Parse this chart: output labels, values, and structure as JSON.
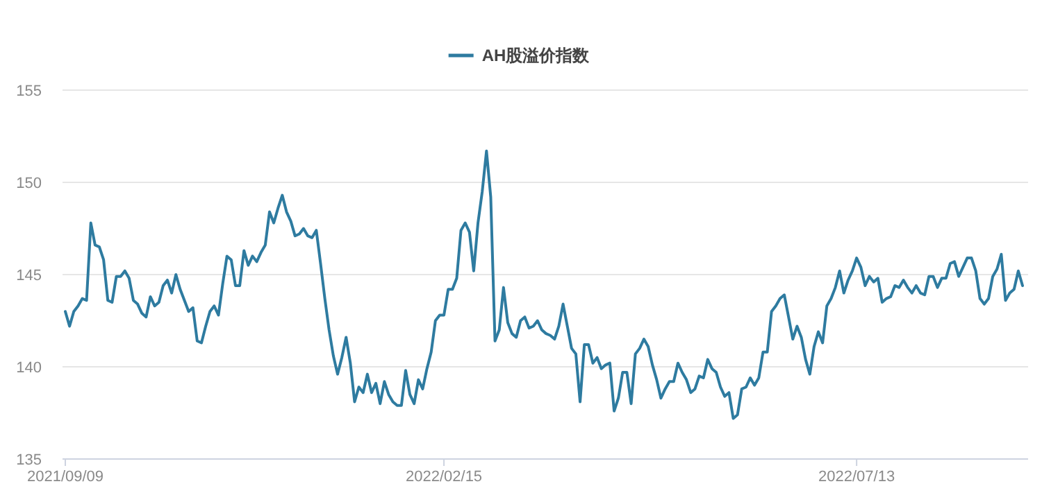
{
  "chart_data": {
    "type": "line",
    "categories": [
      "2021/09/09",
      null,
      null,
      null,
      null,
      null,
      null,
      null,
      null,
      null,
      null,
      null,
      null,
      null,
      null,
      null,
      null,
      null,
      null,
      null,
      null,
      null,
      null,
      null,
      null,
      null,
      null,
      null,
      null,
      null,
      null,
      null,
      null,
      null,
      null,
      null,
      null,
      null,
      null,
      null,
      null,
      null,
      null,
      null,
      null,
      null,
      null,
      null,
      null,
      null,
      null,
      null,
      null,
      null,
      null,
      null,
      null,
      null,
      null,
      null,
      null,
      null,
      null,
      null,
      null,
      null,
      null,
      null,
      null,
      null,
      null,
      null,
      null,
      null,
      null,
      null,
      null,
      null,
      null,
      null,
      null,
      null,
      null,
      null,
      null,
      null,
      null,
      null,
      null,
      "2022/02/15",
      null,
      null,
      null,
      null,
      null,
      null,
      null,
      null,
      null,
      null,
      null,
      null,
      null,
      null,
      null,
      null,
      null,
      null,
      null,
      null,
      null,
      null,
      null,
      null,
      null,
      null,
      null,
      null,
      null,
      null,
      null,
      null,
      null,
      null,
      null,
      null,
      null,
      null,
      null,
      null,
      null,
      null,
      null,
      null,
      null,
      null,
      null,
      null,
      null,
      null,
      null,
      null,
      null,
      null,
      null,
      null,
      null,
      null,
      null,
      null,
      null,
      null,
      null,
      null,
      null,
      null,
      null,
      null,
      null,
      null,
      null,
      null,
      null,
      null,
      null,
      null,
      null,
      null,
      null,
      null,
      null,
      null,
      null,
      null,
      null,
      null,
      null,
      null,
      null,
      null,
      null,
      null,
      null,
      null,
      null,
      null,
      "2022/07/13",
      null,
      null,
      null,
      null,
      null,
      null,
      null,
      null,
      null,
      null,
      null,
      null,
      null,
      null,
      null,
      null,
      null,
      null,
      null,
      null,
      null,
      null,
      null,
      null,
      null,
      null,
      null,
      null,
      null,
      null,
      null,
      null,
      null,
      null,
      null,
      null,
      null,
      null,
      null
    ],
    "series": [
      {
        "name": "AH股溢价指数",
        "color": "#2e7ba0",
        "values": [
          143.0,
          142.2,
          143.0,
          143.3,
          143.7,
          143.6,
          147.8,
          146.6,
          146.5,
          145.8,
          143.6,
          143.5,
          144.9,
          144.9,
          145.2,
          144.8,
          143.6,
          143.4,
          142.9,
          142.7,
          143.8,
          143.3,
          143.5,
          144.4,
          144.7,
          144.0,
          145.0,
          144.2,
          143.6,
          143.0,
          143.2,
          141.4,
          141.3,
          142.2,
          143.0,
          143.3,
          142.8,
          144.5,
          146.0,
          145.8,
          144.4,
          144.4,
          146.3,
          145.5,
          146.0,
          145.7,
          146.2,
          146.6,
          148.4,
          147.8,
          148.6,
          149.3,
          148.4,
          147.9,
          147.1,
          147.2,
          147.5,
          147.1,
          147.0,
          147.4,
          145.6,
          143.7,
          142.0,
          140.6,
          139.6,
          140.5,
          141.6,
          140.2,
          138.1,
          138.9,
          138.6,
          139.6,
          138.6,
          139.1,
          138.0,
          139.2,
          138.5,
          138.1,
          137.9,
          137.9,
          139.8,
          138.5,
          138.0,
          139.3,
          138.8,
          139.9,
          140.8,
          142.5,
          142.8,
          142.8,
          144.2,
          144.2,
          144.8,
          147.4,
          147.8,
          147.3,
          145.2,
          147.8,
          149.5,
          151.7,
          149.2,
          141.4,
          142.0,
          144.3,
          142.4,
          141.8,
          141.6,
          142.5,
          142.7,
          142.1,
          142.2,
          142.5,
          142.0,
          141.8,
          141.7,
          141.5,
          142.2,
          143.4,
          142.2,
          141.0,
          140.7,
          138.1,
          141.2,
          141.2,
          140.2,
          140.5,
          139.9,
          140.1,
          140.2,
          137.6,
          138.3,
          139.7,
          139.7,
          138.0,
          140.7,
          141.0,
          141.5,
          141.1,
          140.1,
          139.3,
          138.3,
          138.8,
          139.2,
          139.2,
          140.2,
          139.7,
          139.3,
          138.6,
          138.8,
          139.5,
          139.4,
          140.4,
          139.9,
          139.7,
          138.9,
          138.4,
          138.6,
          137.2,
          137.4,
          138.8,
          138.9,
          139.4,
          139.0,
          139.4,
          140.8,
          140.8,
          143.0,
          143.3,
          143.7,
          143.9,
          142.7,
          141.5,
          142.2,
          141.6,
          140.4,
          139.6,
          141.1,
          141.9,
          141.3,
          143.3,
          143.7,
          144.3,
          145.2,
          144.0,
          144.7,
          145.2,
          145.9,
          145.4,
          144.4,
          144.9,
          144.6,
          144.8,
          143.5,
          143.7,
          143.8,
          144.4,
          144.3,
          144.7,
          144.3,
          144.0,
          144.4,
          144.0,
          143.9,
          144.9,
          144.9,
          144.3,
          144.8,
          144.8,
          145.6,
          145.7,
          144.9,
          145.4,
          145.9,
          145.9,
          145.2,
          143.7,
          143.4,
          143.7,
          144.9,
          145.3,
          146.1,
          143.6,
          144.0,
          144.2,
          145.2,
          144.4
        ]
      }
    ],
    "ylim": [
      135,
      155
    ],
    "yticks": [
      135,
      140,
      145,
      150,
      155
    ],
    "grid": "y",
    "legend": "top",
    "line_style": "solid",
    "marker": "none"
  }
}
